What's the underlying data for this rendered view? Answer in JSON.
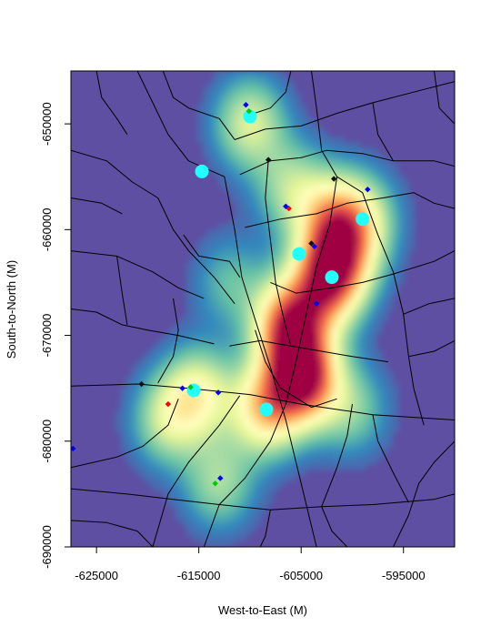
{
  "chart_data": {
    "type": "heatmap",
    "title": "",
    "xlabel": "West-to-East (M)",
    "ylabel": "South-to-North (M)",
    "xlim": [
      -627500,
      -590000
    ],
    "ylim": [
      -690000,
      -645000
    ],
    "x_ticks": [
      -625000,
      -615000,
      -605000,
      -595000
    ],
    "x_tick_labels": [
      "-625000",
      "-615000",
      "-605000",
      "-595000"
    ],
    "y_ticks": [
      -650000,
      -660000,
      -670000,
      -680000,
      -690000
    ],
    "y_tick_labels": [
      "-650000",
      "-660000",
      "-670000",
      "-680000",
      "-690000"
    ],
    "colormap": "Spectral (reversed): low = #5e4fa2 (purple), high = #9e0142 (dark red)",
    "density_peaks": [
      {
        "x": -604800,
        "y": -674000,
        "level": 1.0
      },
      {
        "x": -606200,
        "y": -669000,
        "level": 0.85
      },
      {
        "x": -602500,
        "y": -665000,
        "level": 0.75
      },
      {
        "x": -602000,
        "y": -659000,
        "level": 0.5
      },
      {
        "x": -601000,
        "y": -662500,
        "level": 0.45
      },
      {
        "x": -608500,
        "y": -677000,
        "level": 0.6
      },
      {
        "x": -615000,
        "y": -675500,
        "level": 0.45
      },
      {
        "x": -618000,
        "y": -678000,
        "level": 0.35
      },
      {
        "x": -613000,
        "y": -684000,
        "level": 0.3
      },
      {
        "x": -610000,
        "y": -650000,
        "level": 0.4
      },
      {
        "x": -606000,
        "y": -656000,
        "level": 0.3
      },
      {
        "x": -599000,
        "y": -659000,
        "level": 0.35
      },
      {
        "x": -612000,
        "y": -665000,
        "level": 0.2
      },
      {
        "x": -600000,
        "y": -677000,
        "level": 0.25
      }
    ],
    "cyan_circles": [
      {
        "x": -610000,
        "y": -649300
      },
      {
        "x": -614700,
        "y": -654500
      },
      {
        "x": -599000,
        "y": -659000
      },
      {
        "x": -605200,
        "y": -662300
      },
      {
        "x": -602000,
        "y": -664500
      },
      {
        "x": -608400,
        "y": -677000
      },
      {
        "x": -615500,
        "y": -675200
      }
    ],
    "markers": [
      {
        "x": -610400,
        "y": -648200,
        "color": "#0000ff"
      },
      {
        "x": -610100,
        "y": -648800,
        "color": "#00c800"
      },
      {
        "x": -608200,
        "y": -653400,
        "color": "#111111"
      },
      {
        "x": -606200,
        "y": -658000,
        "color": "#ff0000"
      },
      {
        "x": -606500,
        "y": -657800,
        "color": "#0000ff"
      },
      {
        "x": -604000,
        "y": -661300,
        "color": "#111111"
      },
      {
        "x": -603700,
        "y": -661600,
        "color": "#0000ff"
      },
      {
        "x": -601800,
        "y": -655200,
        "color": "#111111"
      },
      {
        "x": -598500,
        "y": -656200,
        "color": "#0000ff"
      },
      {
        "x": -603500,
        "y": -667000,
        "color": "#0000ff"
      },
      {
        "x": -615800,
        "y": -674900,
        "color": "#00c800"
      },
      {
        "x": -616600,
        "y": -675000,
        "color": "#0000ff"
      },
      {
        "x": -613100,
        "y": -675400,
        "color": "#0000ff"
      },
      {
        "x": -618000,
        "y": -676500,
        "color": "#ff0000"
      },
      {
        "x": -627300,
        "y": -680700,
        "color": "#0000ff"
      },
      {
        "x": -612900,
        "y": -683500,
        "color": "#0000ff"
      },
      {
        "x": -613400,
        "y": -684000,
        "color": "#00c800"
      },
      {
        "x": -620600,
        "y": -674600,
        "color": "#111111"
      }
    ],
    "boundaries": [
      [
        [
          -627500,
          -674800
        ],
        [
          -621000,
          -674600
        ],
        [
          -616000,
          -675000
        ],
        [
          -610000,
          -675600
        ],
        [
          -605000,
          -676500
        ],
        [
          -598000,
          -677500
        ],
        [
          -590000,
          -678000
        ]
      ],
      [
        [
          -621000,
          -645000
        ],
        [
          -619500,
          -648000
        ],
        [
          -618000,
          -651000
        ],
        [
          -616000,
          -653500
        ],
        [
          -612500,
          -655000
        ],
        [
          -611500,
          -660000
        ],
        [
          -610800,
          -664500
        ],
        [
          -609500,
          -668500
        ],
        [
          -608000,
          -673000
        ],
        [
          -606500,
          -678000
        ],
        [
          -605000,
          -684000
        ],
        [
          -603500,
          -690000
        ]
      ],
      [
        [
          -627500,
          -652500
        ],
        [
          -624000,
          -653500
        ],
        [
          -621500,
          -655500
        ],
        [
          -619000,
          -657000
        ],
        [
          -617500,
          -660000
        ],
        [
          -616000,
          -662000
        ],
        [
          -613500,
          -664500
        ],
        [
          -611500,
          -667000
        ]
      ],
      [
        [
          -627500,
          -662000
        ],
        [
          -623000,
          -662500
        ],
        [
          -619500,
          -664000
        ],
        [
          -617000,
          -665500
        ],
        [
          -614500,
          -666500
        ]
      ],
      [
        [
          -611500,
          -651500
        ],
        [
          -608500,
          -650500
        ],
        [
          -605000,
          -650200
        ],
        [
          -601500,
          -649000
        ],
        [
          -598000,
          -648000
        ],
        [
          -594000,
          -647000
        ],
        [
          -590000,
          -646000
        ]
      ],
      [
        [
          -611000,
          -654800
        ],
        [
          -608000,
          -653500
        ],
        [
          -605000,
          -653200
        ],
        [
          -602500,
          -652500
        ],
        [
          -599000,
          -652800
        ],
        [
          -596000,
          -653500
        ],
        [
          -592000,
          -653500
        ],
        [
          -590000,
          -654000
        ]
      ],
      [
        [
          -610500,
          -659800
        ],
        [
          -607000,
          -659000
        ],
        [
          -603500,
          -658500
        ],
        [
          -600500,
          -657500
        ],
        [
          -597000,
          -657000
        ]
      ],
      [
        [
          -604000,
          -645000
        ],
        [
          -603500,
          -648500
        ],
        [
          -603000,
          -652500
        ],
        [
          -601500,
          -655000
        ],
        [
          -599000,
          -656500
        ],
        [
          -597500,
          -660500
        ],
        [
          -596000,
          -664000
        ],
        [
          -595000,
          -668000
        ],
        [
          -594500,
          -672000
        ],
        [
          -594000,
          -675000
        ],
        [
          -593000,
          -678500
        ]
      ],
      [
        [
          -601500,
          -655000
        ],
        [
          -602200,
          -659500
        ],
        [
          -603500,
          -663500
        ],
        [
          -604500,
          -668000
        ],
        [
          -605500,
          -672500
        ],
        [
          -606500,
          -676500
        ],
        [
          -608000,
          -680000
        ],
        [
          -610500,
          -683500
        ],
        [
          -613000,
          -686000
        ],
        [
          -614500,
          -690000
        ]
      ],
      [
        [
          -608000,
          -665000
        ],
        [
          -605500,
          -666000
        ],
        [
          -602000,
          -665500
        ],
        [
          -599000,
          -665000
        ],
        [
          -596000,
          -664200
        ],
        [
          -592000,
          -663000
        ],
        [
          -590000,
          -662000
        ]
      ],
      [
        [
          -612000,
          -671000
        ],
        [
          -609000,
          -670500
        ],
        [
          -606000,
          -671000
        ],
        [
          -603000,
          -671500
        ],
        [
          -600000,
          -672000
        ],
        [
          -596500,
          -672500
        ]
      ],
      [
        [
          -609500,
          -669500
        ],
        [
          -608500,
          -672500
        ],
        [
          -607000,
          -675000
        ],
        [
          -604000,
          -676800
        ],
        [
          -601500,
          -676000
        ]
      ],
      [
        [
          -617000,
          -676000
        ],
        [
          -618000,
          -678500
        ],
        [
          -620500,
          -680500
        ],
        [
          -623000,
          -681500
        ],
        [
          -627500,
          -682500
        ]
      ],
      [
        [
          -627500,
          -684500
        ],
        [
          -622000,
          -685000
        ],
        [
          -617500,
          -685500
        ],
        [
          -613000,
          -686000
        ],
        [
          -608000,
          -686500
        ],
        [
          -603000,
          -686200
        ],
        [
          -598000,
          -686000
        ],
        [
          -592000,
          -685500
        ],
        [
          -590000,
          -685000
        ]
      ],
      [
        [
          -618500,
          -645000
        ],
        [
          -617500,
          -647500
        ],
        [
          -616000,
          -648500
        ],
        [
          -613000,
          -649500
        ],
        [
          -611500,
          -651500
        ]
      ],
      [
        [
          -625000,
          -645000
        ],
        [
          -624500,
          -647500
        ],
        [
          -623000,
          -649500
        ],
        [
          -622000,
          -651000
        ]
      ],
      [
        [
          -627500,
          -657000
        ],
        [
          -624500,
          -657500
        ],
        [
          -622500,
          -658500
        ]
      ],
      [
        [
          -627500,
          -667500
        ],
        [
          -625000,
          -667800
        ],
        [
          -622500,
          -669000
        ],
        [
          -620000,
          -669500
        ],
        [
          -617000,
          -670000
        ],
        [
          -613500,
          -670800
        ]
      ],
      [
        [
          -623000,
          -662500
        ],
        [
          -622500,
          -666000
        ],
        [
          -622000,
          -669000
        ]
      ],
      [
        [
          -606000,
          -645000
        ],
        [
          -606500,
          -647000
        ],
        [
          -608000,
          -648500
        ],
        [
          -610500,
          -649300
        ]
      ],
      [
        [
          -598000,
          -648000
        ],
        [
          -597500,
          -651000
        ],
        [
          -596000,
          -653500
        ]
      ],
      [
        [
          -592000,
          -645000
        ],
        [
          -591500,
          -648500
        ],
        [
          -590000,
          -650000
        ]
      ],
      [
        [
          -597000,
          -657000
        ],
        [
          -594000,
          -656500
        ],
        [
          -592000,
          -657500
        ],
        [
          -590000,
          -658000
        ]
      ],
      [
        [
          -594500,
          -672000
        ],
        [
          -592000,
          -671500
        ],
        [
          -590000,
          -670500
        ]
      ],
      [
        [
          -595000,
          -668000
        ],
        [
          -592500,
          -667000
        ],
        [
          -590000,
          -666500
        ]
      ],
      [
        [
          -611000,
          -675700
        ],
        [
          -613000,
          -678500
        ],
        [
          -616000,
          -682000
        ],
        [
          -618000,
          -685000
        ],
        [
          -619500,
          -690000
        ]
      ],
      [
        [
          -600000,
          -676500
        ],
        [
          -600500,
          -679500
        ],
        [
          -601500,
          -682500
        ],
        [
          -603000,
          -686200
        ]
      ],
      [
        [
          -598000,
          -677500
        ],
        [
          -597500,
          -680000
        ],
        [
          -596000,
          -683000
        ],
        [
          -594500,
          -685800
        ]
      ],
      [
        [
          -590000,
          -680000
        ],
        [
          -592000,
          -682000
        ],
        [
          -593500,
          -684000
        ],
        [
          -594500,
          -687000
        ],
        [
          -596000,
          -690000
        ]
      ],
      [
        [
          -627500,
          -687500
        ],
        [
          -624000,
          -687700
        ],
        [
          -621000,
          -688500
        ],
        [
          -619500,
          -690000
        ]
      ],
      [
        [
          -608000,
          -686500
        ],
        [
          -608500,
          -689000
        ],
        [
          -609000,
          -690000
        ]
      ],
      [
        [
          -616500,
          -660500
        ],
        [
          -615000,
          -662500
        ],
        [
          -612000,
          -663000
        ],
        [
          -611000,
          -664500
        ]
      ],
      [
        [
          -617500,
          -666500
        ],
        [
          -617000,
          -669500
        ],
        [
          -617500,
          -672000
        ],
        [
          -619000,
          -674500
        ]
      ],
      [
        [
          -603000,
          -686200
        ],
        [
          -602000,
          -688500
        ],
        [
          -600500,
          -690000
        ]
      ],
      [
        [
          -606000,
          -671000
        ],
        [
          -606800,
          -668000
        ],
        [
          -607500,
          -665000
        ],
        [
          -608000,
          -661000
        ],
        [
          -608500,
          -657000
        ],
        [
          -608200,
          -653400
        ]
      ]
    ]
  }
}
